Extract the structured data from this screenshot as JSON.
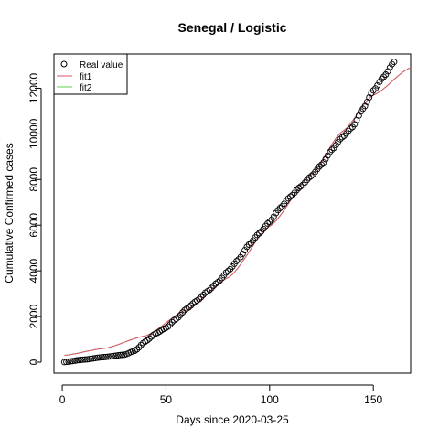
{
  "chart_data": {
    "type": "scatter",
    "title": "Senegal / Logistic",
    "xlabel": "Days since 2020-03-25",
    "ylabel": "Cumulative Confirmed cases",
    "xlim": [
      -4,
      168
    ],
    "ylim": [
      -480,
      13500
    ],
    "xticks": [
      0,
      50,
      100,
      150
    ],
    "yticks": [
      0,
      2000,
      4000,
      6000,
      8000,
      10000,
      12000
    ],
    "legend": {
      "position": "top-left",
      "entries": [
        {
          "label": "Real value",
          "symbol": "circle",
          "color": "#000000"
        },
        {
          "label": "fit1",
          "symbol": "line",
          "color": "#df536b"
        },
        {
          "label": "fit2",
          "symbol": "line",
          "color": "#61d04f"
        }
      ]
    },
    "series": [
      {
        "name": "Real value",
        "kind": "points",
        "color": "#000000",
        "anchors": [
          [
            1,
            5
          ],
          [
            10,
            110
          ],
          [
            20,
            220
          ],
          [
            30,
            330
          ],
          [
            35,
            500
          ],
          [
            40,
            900
          ],
          [
            45,
            1250
          ],
          [
            50,
            1500
          ],
          [
            55,
            1900
          ],
          [
            60,
            2350
          ],
          [
            65,
            2700
          ],
          [
            70,
            3100
          ],
          [
            75,
            3500
          ],
          [
            80,
            4000
          ],
          [
            85,
            4500
          ],
          [
            90,
            5150
          ],
          [
            95,
            5650
          ],
          [
            100,
            6150
          ],
          [
            105,
            6750
          ],
          [
            110,
            7250
          ],
          [
            115,
            7700
          ],
          [
            120,
            8150
          ],
          [
            125,
            8650
          ],
          [
            130,
            9300
          ],
          [
            135,
            9850
          ],
          [
            140,
            10300
          ],
          [
            145,
            11100
          ],
          [
            150,
            11900
          ],
          [
            155,
            12500
          ],
          [
            160,
            13150
          ]
        ],
        "x_range": [
          1,
          160
        ]
      },
      {
        "name": "fit1",
        "kind": "line",
        "color": "#df536b",
        "anchors": [
          [
            1,
            300
          ],
          [
            20,
            600
          ],
          [
            40,
            1150
          ],
          [
            60,
            2300
          ],
          [
            80,
            3700
          ],
          [
            100,
            5950
          ],
          [
            120,
            8200
          ],
          [
            135,
            10100
          ],
          [
            150,
            11700
          ],
          [
            168,
            12900
          ]
        ]
      },
      {
        "name": "fit2",
        "kind": "line",
        "color": "#61d04f",
        "anchors": [
          [
            1,
            300
          ],
          [
            20,
            600
          ],
          [
            40,
            1150
          ],
          [
            60,
            2300
          ],
          [
            80,
            3700
          ],
          [
            100,
            5950
          ],
          [
            120,
            8200
          ],
          [
            135,
            10100
          ],
          [
            150,
            11700
          ],
          [
            168,
            12900
          ]
        ]
      }
    ]
  }
}
